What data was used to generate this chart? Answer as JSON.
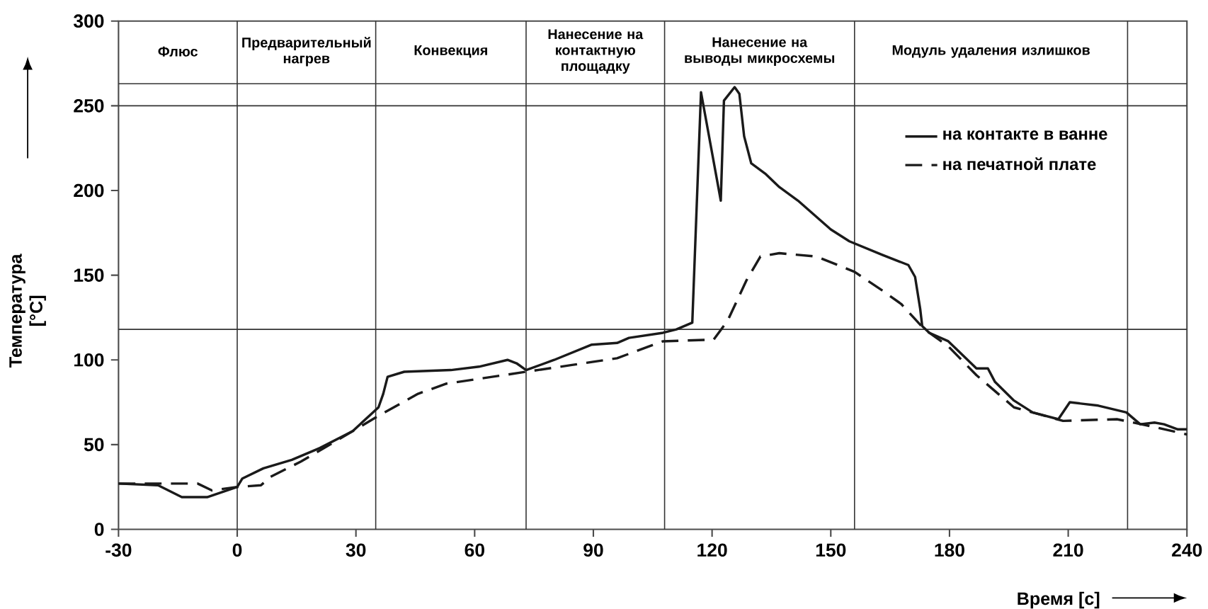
{
  "chart_data": {
    "type": "line",
    "xlabel": "Время [с]",
    "ylabel": "Температура [°C]",
    "xlim": [
      -30,
      240
    ],
    "xticks": [
      -30,
      0,
      30,
      60,
      90,
      120,
      150,
      180,
      210,
      240
    ],
    "ylim": [
      0,
      300
    ],
    "yticks": [
      0,
      50,
      100,
      150,
      200,
      250,
      300
    ],
    "legend": "top right",
    "grid": false,
    "series": [
      {
        "name": "на контакте в ванне",
        "color": "#1a1a1a",
        "line_style": "solid",
        "x": [
          -30,
          -20,
          -14,
          -7.6,
          0,
          1.3,
          6.6,
          13.8,
          20.9,
          29.2,
          35.7,
          36.9,
          38,
          42.2,
          54,
          61.1,
          68.3,
          70.6,
          73,
          80.1,
          89.6,
          96,
          99,
          107.6,
          111,
          115,
          117.2,
          122.2,
          123,
          125.7,
          126.9,
          128.1,
          129.9,
          133.4,
          137,
          141.7,
          150,
          154.7,
          163,
          169.6,
          171.3,
          172.6,
          173.1,
          174.9,
          179.7,
          186.8,
          189.7,
          191.5,
          196.3,
          201,
          207.5,
          210.4,
          217.6,
          224.7,
          228.2,
          231.8,
          234.2,
          237.7,
          240
        ],
        "values": [
          27,
          26,
          19,
          19,
          25,
          30,
          36,
          41,
          48,
          58,
          72,
          80,
          90,
          93,
          94,
          96,
          100,
          98,
          94,
          100,
          109,
          110,
          113,
          116,
          118,
          122,
          258,
          194,
          253,
          261,
          257,
          232,
          216,
          210,
          202,
          194,
          177,
          170,
          162,
          156,
          149,
          130,
          120,
          116,
          111,
          95,
          95,
          87,
          76,
          69,
          65,
          75,
          73,
          69,
          62,
          63,
          62,
          59,
          59
        ]
      },
      {
        "name": "на печатной плате",
        "color": "#1a1a1a",
        "line_style": "dashed",
        "x": [
          -30,
          -10,
          -6.4,
          0,
          6,
          8.4,
          16.1,
          29.2,
          35.7,
          45.7,
          52.9,
          73,
          84.6,
          96,
          107.6,
          120.4,
          123.9,
          128.7,
          132.2,
          137,
          146.4,
          156,
          163,
          167.8,
          173.7,
          179.7,
          186.8,
          196.3,
          208.7,
          222.3,
          230.6,
          240
        ],
        "values": [
          27,
          27,
          23,
          25,
          26,
          31,
          40,
          58,
          67,
          80,
          86,
          93,
          97,
          101,
          111,
          112,
          123,
          147,
          161,
          163,
          161,
          152,
          141,
          133,
          118,
          108,
          91,
          72,
          64,
          65,
          61,
          56
        ]
      }
    ],
    "ref_lines": [
      {
        "axis": "y",
        "value": 250
      },
      {
        "axis": "y",
        "value": 263
      },
      {
        "axis": "y",
        "value": 118
      },
      {
        "axis": "x",
        "value": 0
      },
      {
        "axis": "x",
        "value": 35
      },
      {
        "axis": "x",
        "value": 73
      },
      {
        "axis": "x",
        "value": 108
      },
      {
        "axis": "x",
        "value": 156
      },
      {
        "axis": "x",
        "value": 225
      }
    ],
    "annotations": [
      "Флюс",
      "Предварительный нагрев",
      "Конвекция",
      "Нанесение на контактную площадку",
      "Нанесение на выводы микросхемы",
      "Модуль удаления излишков"
    ]
  }
}
